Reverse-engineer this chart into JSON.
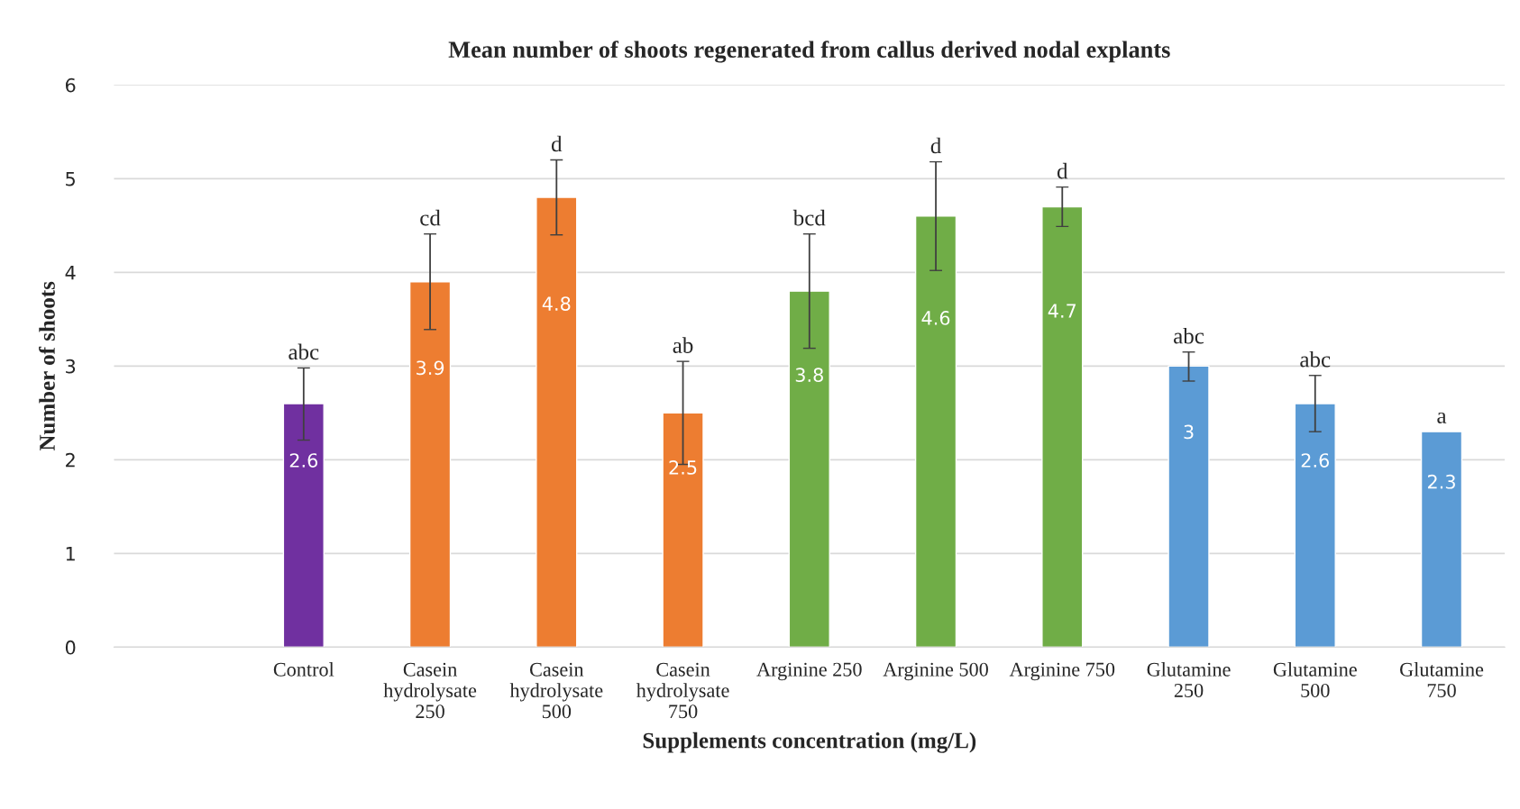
{
  "chart_data": {
    "type": "bar",
    "title": "Mean number of shoots regenerated from callus derived nodal explants",
    "xlabel": "Supplements concentration (mg/L)",
    "ylabel": "Number of shoots",
    "categories": [
      null,
      "Control",
      "Casein\nhydrolysate\n250",
      "Casein\nhydrolysate\n500",
      "Casein\nhydrolysate\n750",
      "Arginine 250",
      "Arginine 500",
      "Arginine 750",
      "Glutamine\n250",
      "Glutamine\n500",
      "Glutamine\n750"
    ],
    "values": [
      null,
      2.6,
      3.9,
      4.8,
      2.5,
      3.8,
      4.6,
      4.7,
      3,
      2.6,
      2.3
    ],
    "colors": [
      "#7030a0",
      "#7030a0",
      "#ed7d31",
      "#ed7d31",
      "#ed7d31",
      "#70ad47",
      "#70ad47",
      "#70ad47",
      "#5b9bd5",
      "#5b9bd5",
      "#5b9bd5"
    ],
    "errors": [
      null,
      [
        2.21,
        2.98
      ],
      [
        3.39,
        4.41
      ],
      [
        4.4,
        5.2
      ],
      [
        1.95,
        3.05
      ],
      [
        3.19,
        4.41
      ],
      [
        4.02,
        5.18
      ],
      [
        4.49,
        4.91
      ],
      [
        2.84,
        3.15
      ],
      [
        2.3,
        2.9
      ],
      null
    ],
    "data_labels": true,
    "annotations": [
      {
        "text": "abc",
        "x": "Control",
        "y": 2.98
      },
      {
        "text": "cd",
        "x": "Casein\nhydrolysate\n250",
        "y": 4.41
      },
      {
        "text": "d",
        "x": "Casein\nhydrolysate\n500",
        "y": 5.2
      },
      {
        "text": "ab",
        "x": "Casein\nhydrolysate\n750",
        "y": 3.05
      },
      {
        "text": "bcd",
        "x": "Arginine 250",
        "y": 4.41
      },
      {
        "text": "d",
        "x": "Arginine 500",
        "y": 5.18
      },
      {
        "text": "d",
        "x": "Arginine 750",
        "y": 4.91
      },
      {
        "text": "abc",
        "x": "Glutamine\n250",
        "y": 3.15
      },
      {
        "text": "abc",
        "x": "Glutamine\n500",
        "y": 2.9
      },
      {
        "text": "a",
        "x": "Glutamine\n750",
        "y": 2.3
      }
    ],
    "ylim": [
      0,
      6
    ],
    "yticks": [
      0,
      1,
      2,
      3,
      4,
      5,
      6
    ],
    "grid": "y",
    "legend": false
  }
}
